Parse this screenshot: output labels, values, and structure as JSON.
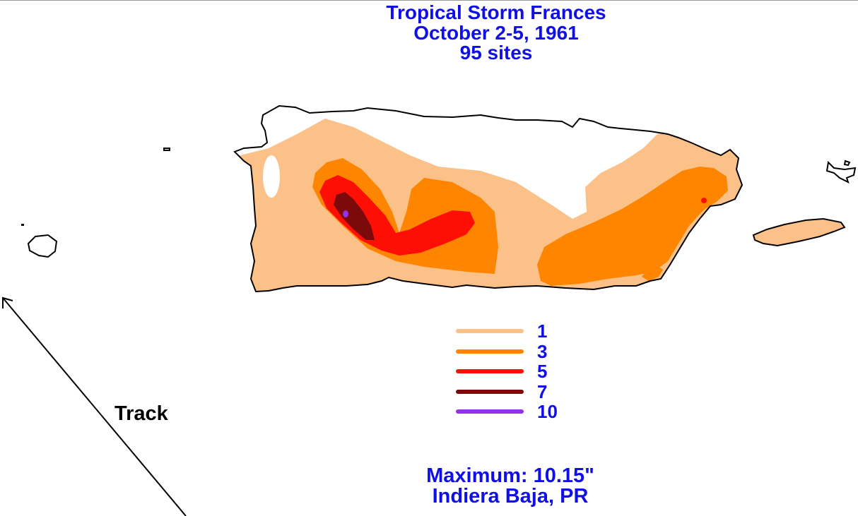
{
  "header": {
    "title": "Tropical Storm Frances",
    "dates": "October 2-5, 1961",
    "sites": "95 sites"
  },
  "legend": [
    {
      "value": "1",
      "color": "#fcc188"
    },
    {
      "value": "3",
      "color": "#fd8500"
    },
    {
      "value": "5",
      "color": "#fe0f05"
    },
    {
      "value": "7",
      "color": "#7d0a0a"
    },
    {
      "value": "10",
      "color": "#9431ea"
    }
  ],
  "track": {
    "label": "Track"
  },
  "maximum": {
    "label": "Maximum:  10.15\"",
    "location": "Indiera Baja, PR"
  }
}
